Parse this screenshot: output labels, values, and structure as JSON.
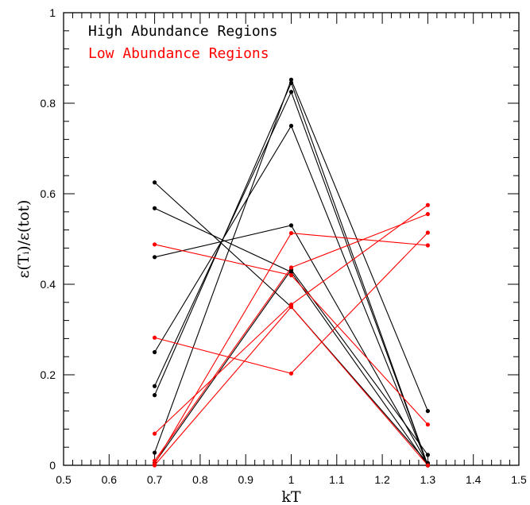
{
  "chart_data": {
    "type": "line",
    "xlabel": "kT",
    "ylabel": "ε(Tᵢ)/ε(tot)",
    "xlim": [
      0.5,
      1.5
    ],
    "ylim": [
      0,
      1
    ],
    "x_ticks": [
      0.5,
      0.6,
      0.7,
      0.8,
      0.9,
      1.0,
      1.1,
      1.2,
      1.3,
      1.4,
      1.5
    ],
    "x_tick_labels": [
      "0.5",
      "0.6",
      "0.7",
      "0.8",
      "0.9",
      "1",
      "1.1",
      "1.2",
      "1.3",
      "1.4",
      "1.5"
    ],
    "y_ticks": [
      0,
      0.2,
      0.4,
      0.6,
      0.8,
      1.0
    ],
    "y_tick_labels": [
      "0",
      "0.2",
      "0.4",
      "0.6",
      "0.8",
      "1"
    ],
    "grid": false,
    "legend_placement": "top-left",
    "legend": [
      {
        "label": "High Abundance Regions",
        "color": "#000000"
      },
      {
        "label": "Low Abundance Regions",
        "color": "#ff0000"
      }
    ],
    "x": [
      0.7,
      1.0,
      1.3
    ],
    "groups": [
      {
        "legend": "High Abundance Regions",
        "color": "#000000",
        "lines": [
          [
            0.625,
            0.35,
            0.005
          ],
          [
            0.568,
            0.427,
            0.0
          ],
          [
            0.46,
            0.53,
            0.003
          ],
          [
            0.25,
            0.75,
            0.0
          ],
          [
            0.175,
            0.825,
            0.0
          ],
          [
            0.155,
            0.845,
            0.0
          ],
          [
            0.028,
            0.852,
            0.12
          ],
          [
            0.005,
            0.432,
            0.023
          ]
        ]
      },
      {
        "legend": "Low Abundance Regions",
        "color": "#ff0000",
        "lines": [
          [
            0.488,
            0.42,
            0.09
          ],
          [
            0.282,
            0.203,
            0.514
          ],
          [
            0.07,
            0.355,
            0.575
          ],
          [
            0.01,
            0.437,
            0.555
          ],
          [
            0.003,
            0.513,
            0.486
          ],
          [
            0.0,
            0.35,
            0.0
          ]
        ]
      }
    ]
  }
}
